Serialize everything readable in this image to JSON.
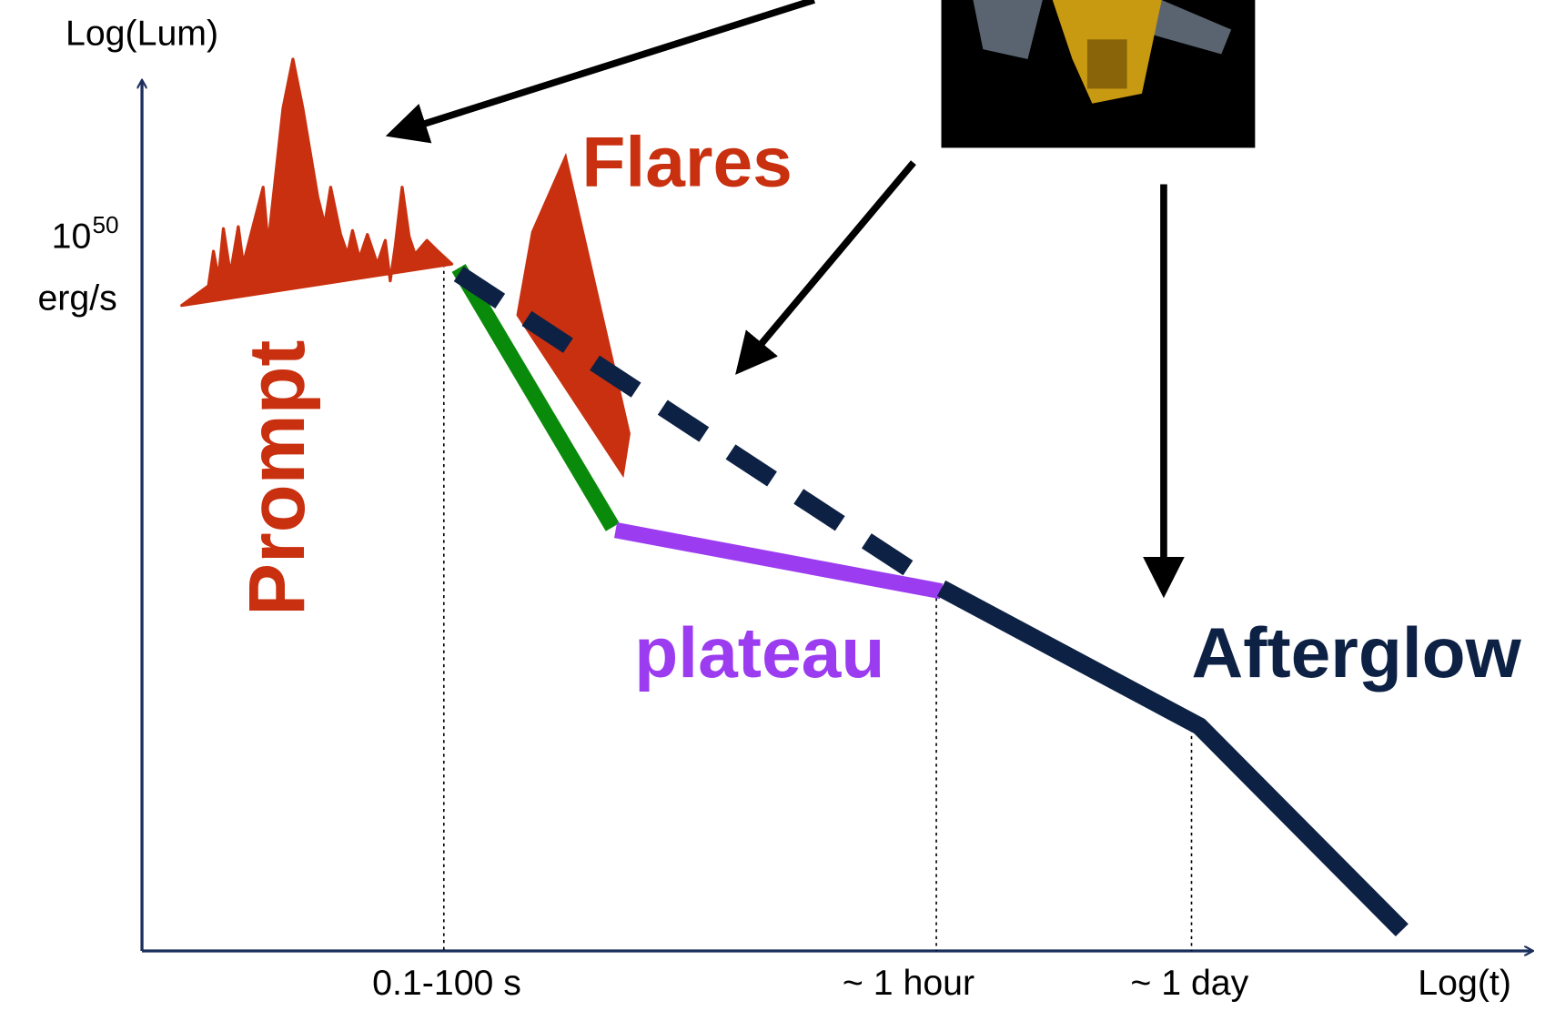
{
  "axes": {
    "y_label": "Log(Lum)",
    "x_label": "Log(t)"
  },
  "y_marker": {
    "base": "10",
    "exponent": "50",
    "unit": "erg/s"
  },
  "phases": {
    "prompt": "Prompt",
    "flares": "Flares",
    "plateau": "plateau",
    "afterglow": "Afterglow"
  },
  "x_markers": [
    "0.1-100 s",
    "~ 1 hour",
    "~ 1 day"
  ]
}
